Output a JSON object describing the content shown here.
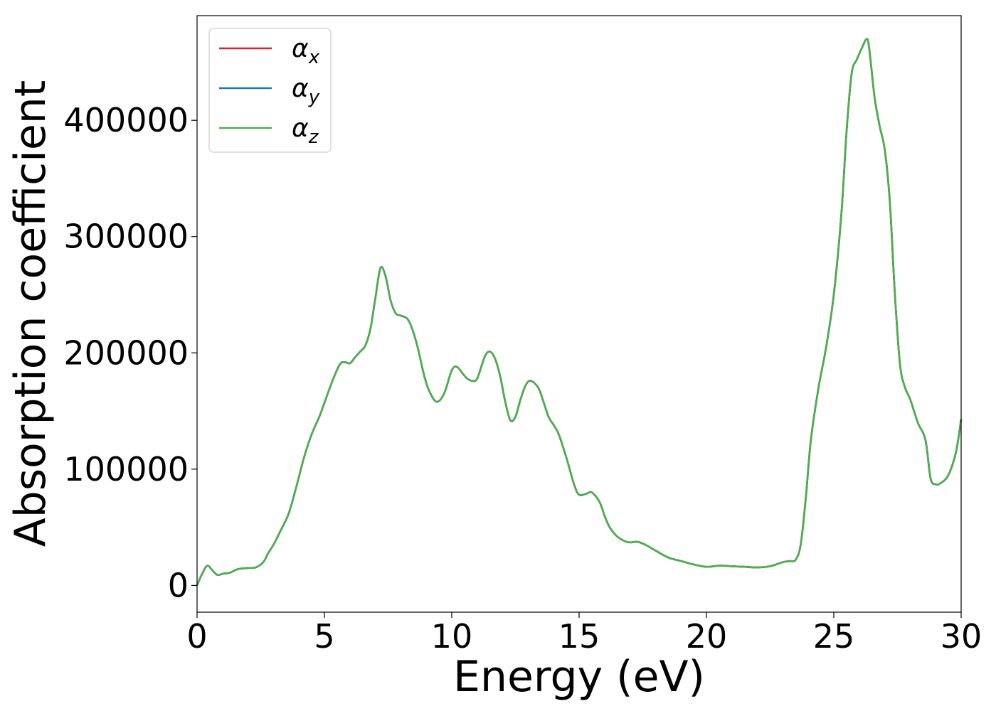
{
  "chart_data": {
    "type": "line",
    "title": "",
    "xlabel": "Energy (eV)",
    "ylabel": "Absorption coefficient",
    "xlim": [
      0,
      30
    ],
    "ylim": [
      -23000,
      490000
    ],
    "xticks": [
      0,
      5,
      10,
      15,
      20,
      25,
      30
    ],
    "yticks": [
      0,
      100000,
      200000,
      300000,
      400000
    ],
    "grid": false,
    "legend_position": "top-left",
    "legend": [
      {
        "symbol": "α",
        "sub": "x",
        "color": "#d62728"
      },
      {
        "symbol": "α",
        "sub": "y",
        "color": "#1f77b4"
      },
      {
        "symbol": "α",
        "sub": "z",
        "color": "#4daf4a"
      }
    ],
    "x": [
      0,
      0.2,
      0.4,
      0.6,
      0.8,
      1.0,
      1.3,
      1.6,
      2.0,
      2.3,
      2.6,
      2.8,
      3.0,
      3.3,
      3.6,
      3.9,
      4.2,
      4.5,
      4.8,
      5.0,
      5.3,
      5.6,
      5.8,
      6.0,
      6.2,
      6.4,
      6.6,
      6.8,
      7.0,
      7.2,
      7.4,
      7.6,
      7.8,
      8.0,
      8.3,
      8.6,
      8.9,
      9.1,
      9.4,
      9.7,
      10.0,
      10.2,
      10.4,
      10.6,
      10.8,
      11.0,
      11.3,
      11.5,
      11.7,
      11.9,
      12.1,
      12.3,
      12.5,
      12.7,
      12.9,
      13.1,
      13.4,
      13.6,
      13.8,
      14.0,
      14.2,
      14.5,
      14.8,
      15.0,
      15.3,
      15.5,
      15.8,
      16.0,
      16.2,
      16.5,
      16.8,
      17.0,
      17.3,
      17.6,
      18.0,
      18.5,
      19.0,
      19.5,
      20.0,
      20.5,
      21.0,
      21.5,
      22.0,
      22.5,
      23.0,
      23.3,
      23.5,
      23.7,
      23.9,
      24.1,
      24.4,
      24.7,
      25.0,
      25.3,
      25.5,
      25.7,
      25.9,
      26.1,
      26.3,
      26.4,
      26.6,
      26.8,
      27.0,
      27.2,
      27.4,
      27.6,
      27.8,
      28.0,
      28.3,
      28.6,
      28.8,
      29.0,
      29.2,
      29.5,
      29.8,
      30.0
    ],
    "series": [
      {
        "name": "αx",
        "color": "#d62728",
        "values": [
          0,
          10000,
          17000,
          13000,
          9000,
          10000,
          11000,
          14000,
          15000,
          15500,
          20000,
          28000,
          35000,
          48000,
          62000,
          85000,
          110000,
          130000,
          145000,
          157000,
          175000,
          190000,
          192000,
          191000,
          196000,
          201000,
          206000,
          220000,
          247000,
          273000,
          266000,
          245000,
          234000,
          232000,
          228000,
          210000,
          182000,
          168000,
          158000,
          165000,
          185000,
          188000,
          183000,
          178000,
          176000,
          178000,
          197000,
          201000,
          195000,
          180000,
          158000,
          142000,
          145000,
          160000,
          172000,
          176000,
          170000,
          158000,
          145000,
          138000,
          130000,
          110000,
          87000,
          78000,
          79000,
          80000,
          72000,
          60000,
          50000,
          42000,
          38000,
          37000,
          37500,
          35000,
          30000,
          24000,
          21000,
          18000,
          16000,
          17000,
          16500,
          16000,
          15500,
          16500,
          20000,
          21000,
          22000,
          35000,
          75000,
          125000,
          170000,
          205000,
          250000,
          320000,
          390000,
          440000,
          452000,
          462000,
          470000,
          460000,
          420000,
          395000,
          375000,
          330000,
          250000,
          190000,
          170000,
          160000,
          140000,
          125000,
          92000,
          87000,
          88000,
          95000,
          115000,
          143000
        ]
      },
      {
        "name": "αy",
        "color": "#1f77b4",
        "values": [
          0,
          10000,
          17000,
          13000,
          9000,
          10000,
          11000,
          14000,
          15000,
          15500,
          20000,
          28000,
          35000,
          48000,
          62000,
          85000,
          110000,
          130000,
          145000,
          157000,
          175000,
          190000,
          192000,
          191000,
          196000,
          201000,
          206000,
          220000,
          247000,
          273000,
          266000,
          245000,
          234000,
          232000,
          228000,
          210000,
          182000,
          168000,
          158000,
          165000,
          185000,
          188000,
          183000,
          178000,
          176000,
          178000,
          197000,
          201000,
          195000,
          180000,
          158000,
          142000,
          145000,
          160000,
          172000,
          176000,
          170000,
          158000,
          145000,
          138000,
          130000,
          110000,
          87000,
          78000,
          79000,
          80000,
          72000,
          60000,
          50000,
          42000,
          38000,
          37000,
          37500,
          35000,
          30000,
          24000,
          21000,
          18000,
          16000,
          17000,
          16500,
          16000,
          15500,
          16500,
          20000,
          21000,
          22000,
          35000,
          75000,
          125000,
          170000,
          205000,
          250000,
          320000,
          390000,
          440000,
          452000,
          462000,
          470000,
          460000,
          420000,
          395000,
          375000,
          330000,
          250000,
          190000,
          170000,
          160000,
          140000,
          125000,
          92000,
          87000,
          88000,
          95000,
          115000,
          143000
        ]
      },
      {
        "name": "αz",
        "color": "#4daf4a",
        "values": [
          0,
          10000,
          17000,
          13000,
          9000,
          10000,
          11000,
          14000,
          15000,
          15500,
          20000,
          28000,
          35000,
          48000,
          62000,
          85000,
          110000,
          130000,
          145000,
          157000,
          175000,
          190000,
          192000,
          191000,
          196000,
          201000,
          206000,
          220000,
          247000,
          273000,
          266000,
          245000,
          234000,
          232000,
          228000,
          210000,
          182000,
          168000,
          158000,
          165000,
          185000,
          188000,
          183000,
          178000,
          176000,
          178000,
          197000,
          201000,
          195000,
          180000,
          158000,
          142000,
          145000,
          160000,
          172000,
          176000,
          170000,
          158000,
          145000,
          138000,
          130000,
          110000,
          87000,
          78000,
          79000,
          80000,
          72000,
          60000,
          50000,
          42000,
          38000,
          37000,
          37500,
          35000,
          30000,
          24000,
          21000,
          18000,
          16000,
          17000,
          16500,
          16000,
          15500,
          16500,
          20000,
          21000,
          22000,
          35000,
          75000,
          125000,
          170000,
          205000,
          250000,
          320000,
          390000,
          440000,
          452000,
          462000,
          470000,
          460000,
          420000,
          395000,
          375000,
          330000,
          250000,
          190000,
          170000,
          160000,
          140000,
          125000,
          92000,
          87000,
          88000,
          95000,
          115000,
          143000
        ]
      }
    ]
  }
}
